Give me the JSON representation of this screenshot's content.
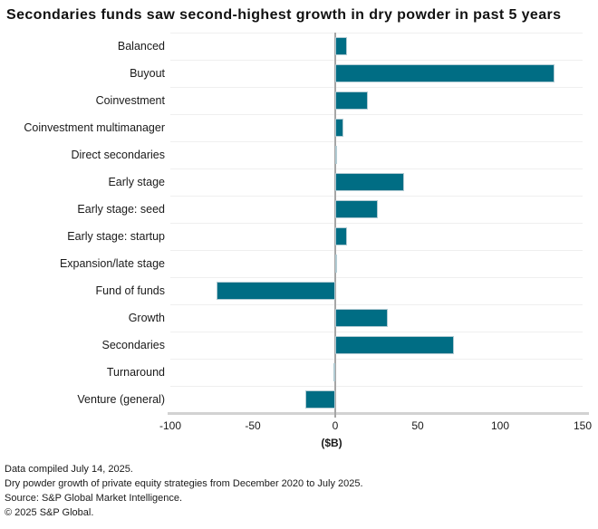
{
  "title": "Secondaries funds saw second-highest growth in dry powder in past 5 years",
  "chart_data": {
    "type": "bar",
    "orientation": "horizontal",
    "title": "Secondaries funds saw second-highest growth in dry powder in past 5 years",
    "categories": [
      "Balanced",
      "Buyout",
      "Coinvestment",
      "Coinvestment multimanager",
      "Direct secondaries",
      "Early stage",
      "Early stage: seed",
      "Early stage: startup",
      "Expansion/late stage",
      "Fund of funds",
      "Growth",
      "Secondaries",
      "Turnaround",
      "Venture (general)"
    ],
    "values": [
      7,
      133,
      20,
      5,
      1,
      42,
      26,
      7,
      1,
      -72,
      32,
      72,
      -1,
      -18
    ],
    "xlabel": "($B)",
    "xticks": [
      -100,
      -50,
      0,
      50,
      100,
      150
    ],
    "xlim": [
      -100,
      150
    ],
    "grid": "row separators only, horizontal",
    "legend": "none",
    "colors": {
      "bar_fill": "#006d84",
      "bar_border": "#b2cbd3",
      "zero_line": "#a6a6a6",
      "gridline": "#efefef",
      "axis_line": "#d2d2d2",
      "text": "#1a1a1a"
    }
  },
  "footnotes": [
    "Data compiled July 14, 2025.",
    "Dry powder growth of private equity strategies from December 2020 to July 2025.",
    "Source: S&P Global Market Intelligence.",
    "© 2025 S&P Global."
  ]
}
